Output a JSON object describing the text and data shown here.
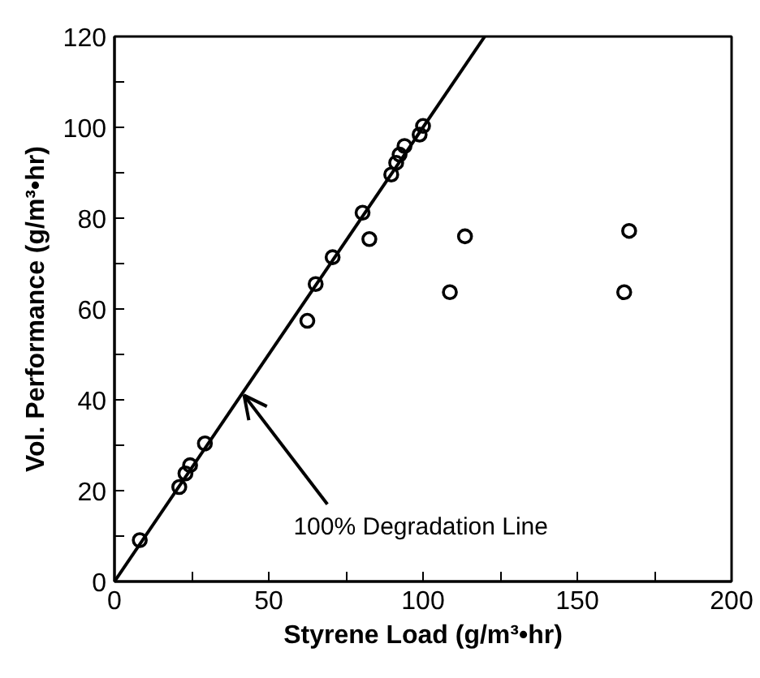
{
  "chart_data": {
    "type": "scatter",
    "xlabel": "Styrene Load (g/m³•hr)",
    "ylabel": "Vol. Performance (g/m³•hr)",
    "xlim": [
      0,
      200
    ],
    "ylim": [
      0,
      120
    ],
    "xticks": [
      0,
      {
        "value": 25,
        "label": null
      },
      50,
      {
        "value": 75,
        "label": null
      },
      100,
      {
        "value": 125,
        "label": null
      },
      150,
      {
        "value": 175,
        "label": null
      },
      200
    ],
    "yticks": [
      0,
      {
        "value": 10,
        "label": null
      },
      20,
      {
        "value": 30,
        "label": null
      },
      40,
      {
        "value": 50,
        "label": null
      },
      60,
      {
        "value": 70,
        "label": null
      },
      80,
      {
        "value": 90,
        "label": null
      },
      100,
      {
        "value": 110,
        "label": null
      },
      120
    ],
    "grid": false,
    "marker": "circle",
    "series": [
      {
        "color": "#000000",
        "x": [
          8.2,
          21,
          23,
          24.5,
          29.3,
          62.5,
          65.2,
          70.7,
          80.4,
          82.6,
          89.7,
          91.3,
          92.4,
          94,
          98.9,
          100,
          113.6,
          108.7,
          166.8,
          165.2
        ],
        "values": [
          9.1,
          20.8,
          23.8,
          25.6,
          30.4,
          57.4,
          65.5,
          71.4,
          81.2,
          75.4,
          89.6,
          92.2,
          94,
          95.9,
          98.4,
          100.3,
          76,
          63.7,
          77.2,
          63.7
        ]
      },
      {
        "type": "line",
        "color": "#000000",
        "marker": "none",
        "line_style": "solid",
        "x": [
          0,
          120
        ],
        "values": [
          0,
          120
        ]
      }
    ],
    "annotations": [
      {
        "text": "100% Degradation Line",
        "x": 42,
        "y": 41
      }
    ]
  }
}
